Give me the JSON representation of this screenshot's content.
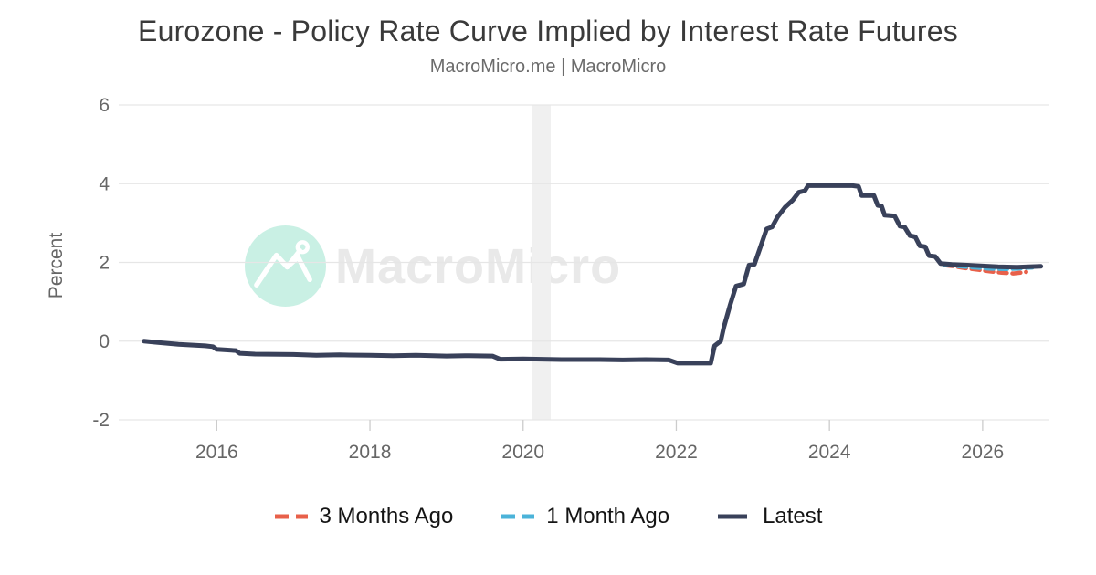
{
  "page": {
    "title": "Eurozone - Policy Rate Curve Implied by Interest Rate Futures",
    "subtitle": "MacroMicro.me | MacroMicro"
  },
  "watermark": {
    "text": "MacroMicro",
    "circle_color": "#c9f0e4",
    "glyph_color": "#ffffff",
    "text_color": "#e9e9e9"
  },
  "colors": {
    "grid": "#e6e6e6",
    "tick_mark": "#cccccc",
    "tick_text": "#666666",
    "recession_band": "#f0f0f0"
  },
  "chart_data": {
    "type": "line",
    "title": "Eurozone - Policy Rate Curve Implied by Interest Rate Futures",
    "xlabel": "",
    "ylabel": "Percent",
    "xlim": [
      2014.72,
      2026.86
    ],
    "ylim": [
      -2,
      6
    ],
    "grid": "horizontal",
    "legend_position": "bottom",
    "x_ticks": [
      2016,
      2018,
      2020,
      2022,
      2024,
      2026
    ],
    "y_ticks": [
      -2,
      0,
      2,
      4,
      6
    ],
    "recession_band": {
      "from": 2020.12,
      "to": 2020.36
    },
    "series": [
      {
        "name": "3 Months Ago",
        "color": "#e8604a",
        "style": "dashed",
        "points": [
          [
            2025.5,
            1.93
          ],
          [
            2025.62,
            1.9
          ],
          [
            2025.75,
            1.86
          ],
          [
            2025.95,
            1.81
          ],
          [
            2026.1,
            1.77
          ],
          [
            2026.25,
            1.74
          ],
          [
            2026.4,
            1.72
          ],
          [
            2026.5,
            1.74
          ],
          [
            2026.57,
            1.76
          ]
        ]
      },
      {
        "name": "1 Month Ago",
        "color": "#4bb3d9",
        "style": "dashed",
        "points": [
          [
            2025.5,
            1.94
          ],
          [
            2025.7,
            1.9
          ],
          [
            2025.9,
            1.87
          ],
          [
            2026.1,
            1.84
          ],
          [
            2026.3,
            1.83
          ],
          [
            2026.45,
            1.84
          ],
          [
            2026.55,
            1.86
          ],
          [
            2026.65,
            1.87
          ]
        ]
      },
      {
        "name": "Latest",
        "color": "#39415a",
        "style": "solid",
        "points": [
          [
            2015.05,
            0.0
          ],
          [
            2015.2,
            -0.03
          ],
          [
            2015.5,
            -0.08
          ],
          [
            2015.85,
            -0.12
          ],
          [
            2015.95,
            -0.14
          ],
          [
            2016.0,
            -0.21
          ],
          [
            2016.25,
            -0.24
          ],
          [
            2016.3,
            -0.31
          ],
          [
            2016.5,
            -0.33
          ],
          [
            2017.0,
            -0.34
          ],
          [
            2017.3,
            -0.36
          ],
          [
            2017.6,
            -0.35
          ],
          [
            2018.0,
            -0.36
          ],
          [
            2018.3,
            -0.37
          ],
          [
            2018.6,
            -0.36
          ],
          [
            2019.0,
            -0.38
          ],
          [
            2019.3,
            -0.37
          ],
          [
            2019.6,
            -0.38
          ],
          [
            2019.7,
            -0.46
          ],
          [
            2020.0,
            -0.45
          ],
          [
            2020.5,
            -0.47
          ],
          [
            2021.0,
            -0.47
          ],
          [
            2021.3,
            -0.48
          ],
          [
            2021.6,
            -0.47
          ],
          [
            2021.9,
            -0.48
          ],
          [
            2022.02,
            -0.56
          ],
          [
            2022.45,
            -0.56
          ],
          [
            2022.5,
            -0.12
          ],
          [
            2022.58,
            0.0
          ],
          [
            2022.62,
            0.35
          ],
          [
            2022.7,
            0.9
          ],
          [
            2022.78,
            1.4
          ],
          [
            2022.88,
            1.45
          ],
          [
            2022.95,
            1.93
          ],
          [
            2023.02,
            1.95
          ],
          [
            2023.1,
            2.4
          ],
          [
            2023.18,
            2.85
          ],
          [
            2023.25,
            2.9
          ],
          [
            2023.32,
            3.15
          ],
          [
            2023.42,
            3.4
          ],
          [
            2023.52,
            3.58
          ],
          [
            2023.6,
            3.78
          ],
          [
            2023.68,
            3.82
          ],
          [
            2023.72,
            3.95
          ],
          [
            2024.3,
            3.95
          ],
          [
            2024.38,
            3.93
          ],
          [
            2024.42,
            3.7
          ],
          [
            2024.58,
            3.7
          ],
          [
            2024.63,
            3.45
          ],
          [
            2024.68,
            3.43
          ],
          [
            2024.72,
            3.2
          ],
          [
            2024.85,
            3.18
          ],
          [
            2024.92,
            2.92
          ],
          [
            2024.98,
            2.9
          ],
          [
            2025.05,
            2.68
          ],
          [
            2025.12,
            2.65
          ],
          [
            2025.18,
            2.42
          ],
          [
            2025.25,
            2.4
          ],
          [
            2025.3,
            2.17
          ],
          [
            2025.38,
            2.15
          ],
          [
            2025.45,
            1.97
          ],
          [
            2025.6,
            1.95
          ],
          [
            2025.8,
            1.93
          ],
          [
            2026.0,
            1.91
          ],
          [
            2026.2,
            1.89
          ],
          [
            2026.45,
            1.88
          ],
          [
            2026.6,
            1.89
          ],
          [
            2026.76,
            1.9
          ]
        ]
      }
    ]
  }
}
